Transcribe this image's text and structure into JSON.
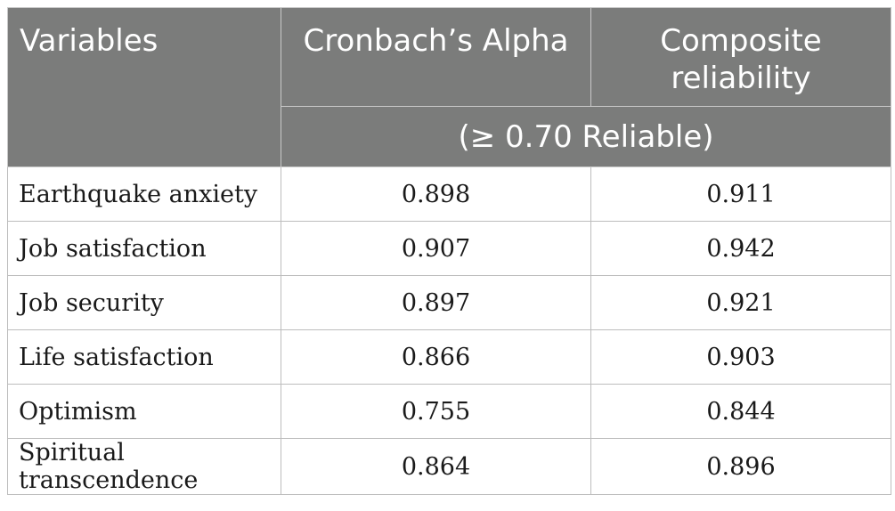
{
  "table": {
    "header": {
      "variables": "Variables",
      "cronbach": "Cronbach’s Alpha",
      "composite": "Composite reliability",
      "threshold": "(≥ 0.70 Reliable)"
    },
    "rows": [
      {
        "variable": "Earthquake anxiety",
        "alpha": "0.898",
        "composite": "0.911"
      },
      {
        "variable": "Job satisfaction",
        "alpha": "0.907",
        "composite": "0.942"
      },
      {
        "variable": "Job security",
        "alpha": "0.897",
        "composite": "0.921"
      },
      {
        "variable": "Life satisfaction",
        "alpha": "0.866",
        "composite": "0.903"
      },
      {
        "variable": "Optimism",
        "alpha": "0.755",
        "composite": "0.844"
      },
      {
        "variable": "Spiritual transcendence",
        "alpha": "0.864",
        "composite": "0.896"
      }
    ]
  }
}
